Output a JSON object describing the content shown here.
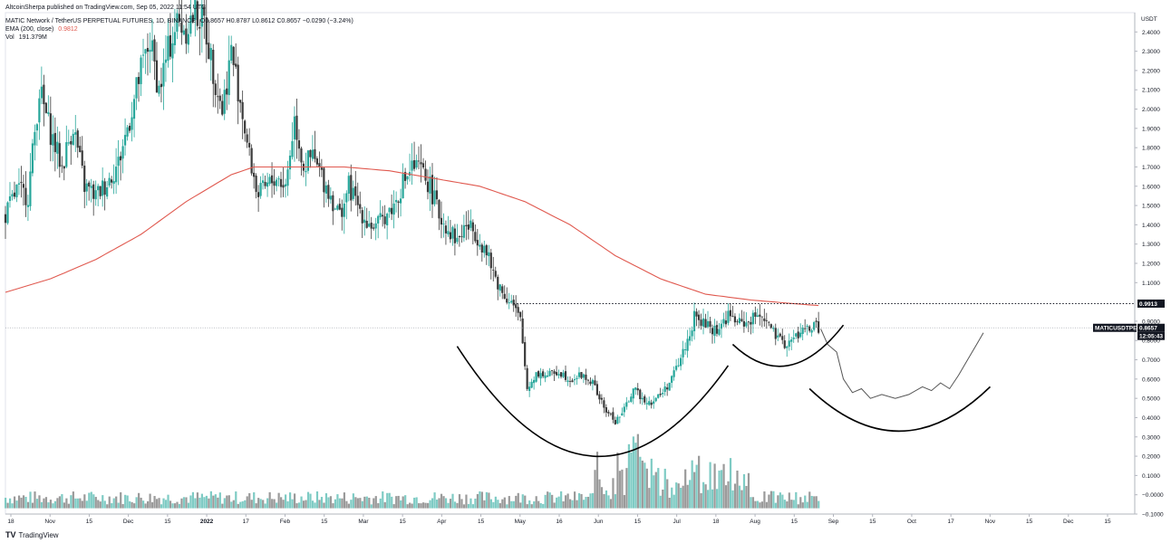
{
  "header": {
    "published": "AltcoinSherpa published on TradingView.com, Sep 05, 2022 11:54 UTC",
    "symbol": "MATIC Network / TetherUS PERPETUAL FUTURES, 1D, BINANCE",
    "ohlc": "O0.8657 H0.8787 L0.8612 C0.8657 −0.0290 (−3.24%)",
    "ema_label": "EMA (200, close)",
    "ema_value": "0.9812",
    "vol_label": "Vol",
    "vol_value": "191.379M"
  },
  "brand": {
    "logo": "TV",
    "name": "TradingView"
  },
  "colors": {
    "up": "#26a69a",
    "down": "#3a3a3a",
    "ema": "#e0594f",
    "vol_up": "#7ecbc4",
    "vol_down": "#9a9a9a",
    "grid": "#f0f3fa",
    "axis": "#b2b5be"
  },
  "chart_data": {
    "type": "candlestick",
    "title": "MATIC Network / TetherUS PERPETUAL FUTURES, 1D, BINANCE",
    "y_axis_unit": "USDT",
    "ylim": [
      -0.1,
      2.5
    ],
    "y_ticks": [
      2.4,
      2.3,
      2.2,
      2.1,
      2.0,
      1.9,
      1.8,
      1.7,
      1.6,
      1.5,
      1.4,
      1.3,
      1.2,
      1.1,
      0.9,
      0.8,
      0.7,
      0.6,
      0.5,
      0.4,
      0.3,
      0.2,
      0.1,
      0.0,
      -0.1
    ],
    "y_tick_labels": [
      "2.4000",
      "2.3000",
      "2.2000",
      "2.1000",
      "2.0000",
      "1.9000",
      "1.8000",
      "1.7000",
      "1.6000",
      "1.5000",
      "1.4000",
      "1.3000",
      "1.2000",
      "1.1000",
      "0.9000",
      "0.8000",
      "0.7000",
      "0.6000",
      "0.5000",
      "0.4000",
      "0.3000",
      "0.2000",
      "0.1000",
      "−0.0000",
      "−0.1000"
    ],
    "x_ticks": [
      "18",
      "Nov",
      "15",
      "Dec",
      "15",
      "2022",
      "17",
      "Feb",
      "15",
      "Mar",
      "15",
      "Apr",
      "15",
      "May",
      "16",
      "Jun",
      "15",
      "Jul",
      "18",
      "Aug",
      "15",
      "Sep",
      "15",
      "Oct",
      "17",
      "Nov",
      "15",
      "Dec",
      "15"
    ],
    "price_path": [
      {
        "day": 0,
        "price": 1.45
      },
      {
        "day": 5,
        "price": 1.58
      },
      {
        "day": 10,
        "price": 1.55
      },
      {
        "day": 15,
        "price": 2.1
      },
      {
        "day": 20,
        "price": 1.88
      },
      {
        "day": 25,
        "price": 1.7
      },
      {
        "day": 30,
        "price": 1.92
      },
      {
        "day": 35,
        "price": 1.6
      },
      {
        "day": 40,
        "price": 1.55
      },
      {
        "day": 45,
        "price": 1.62
      },
      {
        "day": 50,
        "price": 1.72
      },
      {
        "day": 55,
        "price": 1.95
      },
      {
        "day": 60,
        "price": 2.2
      },
      {
        "day": 64,
        "price": 2.35
      },
      {
        "day": 68,
        "price": 2.1
      },
      {
        "day": 72,
        "price": 2.3
      },
      {
        "day": 76,
        "price": 2.45
      },
      {
        "day": 80,
        "price": 2.42
      },
      {
        "day": 84,
        "price": 2.5
      },
      {
        "day": 88,
        "price": 2.45
      },
      {
        "day": 92,
        "price": 2.2
      },
      {
        "day": 96,
        "price": 2.0
      },
      {
        "day": 100,
        "price": 2.3
      },
      {
        "day": 104,
        "price": 2.05
      },
      {
        "day": 108,
        "price": 1.75
      },
      {
        "day": 112,
        "price": 1.55
      },
      {
        "day": 116,
        "price": 1.6
      },
      {
        "day": 120,
        "price": 1.65
      },
      {
        "day": 124,
        "price": 1.6
      },
      {
        "day": 128,
        "price": 1.95
      },
      {
        "day": 132,
        "price": 1.7
      },
      {
        "day": 136,
        "price": 1.75
      },
      {
        "day": 140,
        "price": 1.65
      },
      {
        "day": 144,
        "price": 1.55
      },
      {
        "day": 148,
        "price": 1.45
      },
      {
        "day": 152,
        "price": 1.6
      },
      {
        "day": 156,
        "price": 1.5
      },
      {
        "day": 160,
        "price": 1.42
      },
      {
        "day": 164,
        "price": 1.38
      },
      {
        "day": 168,
        "price": 1.45
      },
      {
        "day": 172,
        "price": 1.5
      },
      {
        "day": 176,
        "price": 1.62
      },
      {
        "day": 180,
        "price": 1.7
      },
      {
        "day": 184,
        "price": 1.68
      },
      {
        "day": 188,
        "price": 1.6
      },
      {
        "day": 192,
        "price": 1.45
      },
      {
        "day": 196,
        "price": 1.38
      },
      {
        "day": 200,
        "price": 1.32
      },
      {
        "day": 204,
        "price": 1.4
      },
      {
        "day": 208,
        "price": 1.36
      },
      {
        "day": 212,
        "price": 1.28
      },
      {
        "day": 216,
        "price": 1.15
      },
      {
        "day": 220,
        "price": 1.05
      },
      {
        "day": 224,
        "price": 1.0
      },
      {
        "day": 228,
        "price": 0.9
      },
      {
        "day": 231,
        "price": 0.55
      },
      {
        "day": 235,
        "price": 0.63
      },
      {
        "day": 240,
        "price": 0.62
      },
      {
        "day": 245,
        "price": 0.64
      },
      {
        "day": 250,
        "price": 0.6
      },
      {
        "day": 255,
        "price": 0.62
      },
      {
        "day": 260,
        "price": 0.58
      },
      {
        "day": 265,
        "price": 0.45
      },
      {
        "day": 270,
        "price": 0.38
      },
      {
        "day": 274,
        "price": 0.44
      },
      {
        "day": 278,
        "price": 0.55
      },
      {
        "day": 282,
        "price": 0.5
      },
      {
        "day": 286,
        "price": 0.48
      },
      {
        "day": 290,
        "price": 0.52
      },
      {
        "day": 294,
        "price": 0.58
      },
      {
        "day": 298,
        "price": 0.68
      },
      {
        "day": 302,
        "price": 0.8
      },
      {
        "day": 305,
        "price": 0.92
      },
      {
        "day": 310,
        "price": 0.88
      },
      {
        "day": 315,
        "price": 0.85
      },
      {
        "day": 320,
        "price": 0.93
      },
      {
        "day": 325,
        "price": 0.89
      },
      {
        "day": 330,
        "price": 0.9
      },
      {
        "day": 334,
        "price": 0.95
      },
      {
        "day": 338,
        "price": 0.88
      },
      {
        "day": 342,
        "price": 0.8
      },
      {
        "day": 346,
        "price": 0.78
      },
      {
        "day": 350,
        "price": 0.82
      },
      {
        "day": 354,
        "price": 0.86
      },
      {
        "day": 358,
        "price": 0.87
      },
      {
        "day": 360,
        "price": 0.8657
      }
    ],
    "ema200": [
      {
        "day": 0,
        "price": 1.05
      },
      {
        "day": 20,
        "price": 1.12
      },
      {
        "day": 40,
        "price": 1.22
      },
      {
        "day": 60,
        "price": 1.35
      },
      {
        "day": 80,
        "price": 1.52
      },
      {
        "day": 100,
        "price": 1.66
      },
      {
        "day": 110,
        "price": 1.7
      },
      {
        "day": 130,
        "price": 1.7
      },
      {
        "day": 150,
        "price": 1.7
      },
      {
        "day": 170,
        "price": 1.68
      },
      {
        "day": 190,
        "price": 1.64
      },
      {
        "day": 210,
        "price": 1.6
      },
      {
        "day": 230,
        "price": 1.52
      },
      {
        "day": 250,
        "price": 1.4
      },
      {
        "day": 270,
        "price": 1.24
      },
      {
        "day": 290,
        "price": 1.12
      },
      {
        "day": 310,
        "price": 1.04
      },
      {
        "day": 330,
        "price": 1.01
      },
      {
        "day": 350,
        "price": 0.99
      },
      {
        "day": 360,
        "price": 0.9812
      }
    ],
    "projection_path": [
      {
        "day": 361,
        "price": 0.86
      },
      {
        "day": 364,
        "price": 0.78
      },
      {
        "day": 368,
        "price": 0.74
      },
      {
        "day": 371,
        "price": 0.6
      },
      {
        "day": 375,
        "price": 0.53
      },
      {
        "day": 379,
        "price": 0.55
      },
      {
        "day": 383,
        "price": 0.5
      },
      {
        "day": 388,
        "price": 0.52
      },
      {
        "day": 394,
        "price": 0.5
      },
      {
        "day": 400,
        "price": 0.52
      },
      {
        "day": 406,
        "price": 0.56
      },
      {
        "day": 410,
        "price": 0.54
      },
      {
        "day": 414,
        "price": 0.58
      },
      {
        "day": 418,
        "price": 0.55
      },
      {
        "day": 422,
        "price": 0.62
      },
      {
        "day": 426,
        "price": 0.7
      },
      {
        "day": 430,
        "price": 0.78
      },
      {
        "day": 433,
        "price": 0.84
      }
    ],
    "resistance_level": 0.9913,
    "resistance_from_day": 225,
    "cup_arcs": [
      {
        "from_day": 200,
        "to_day": 320,
        "low": 0.2,
        "high_left": 0.77,
        "high_right": 0.67
      },
      {
        "from_day": 322,
        "to_day": 371,
        "low": 0.67,
        "high_left": 0.78,
        "high_right": 0.88
      },
      {
        "from_day": 356,
        "to_day": 436,
        "low": 0.33,
        "high_left": 0.55,
        "high_right": 0.56
      }
    ],
    "price_labels": [
      {
        "text": "0.9913"
      },
      {
        "text": "MATICUSDTPERP"
      },
      {
        "text": "0.8657"
      },
      {
        "text": "12:05:43"
      },
      {
        "text": "USDT"
      }
    ]
  }
}
